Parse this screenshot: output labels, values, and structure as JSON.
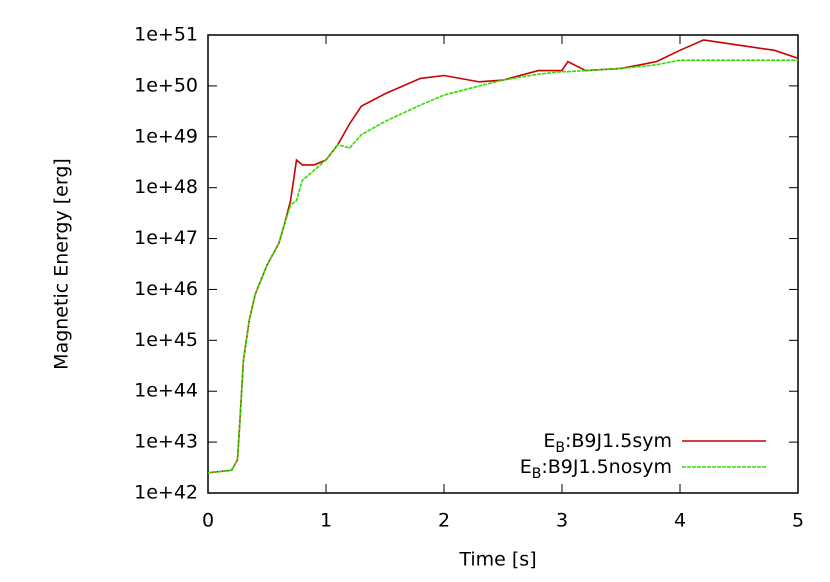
{
  "chart_data": {
    "type": "line",
    "xlabel": "Time [s]",
    "ylabel": "Magnetic Energy [erg]",
    "x": [
      0,
      0.2,
      0.25,
      0.27,
      0.3,
      0.35,
      0.4,
      0.5,
      0.6,
      0.65,
      0.7,
      0.75,
      0.8,
      0.9,
      1.0,
      1.1,
      1.2,
      1.3,
      1.5,
      1.8,
      2.0,
      2.3,
      2.5,
      2.8,
      3.0,
      3.05,
      3.2,
      3.5,
      3.8,
      4.0,
      4.2,
      4.5,
      4.8,
      5.0
    ],
    "series": [
      {
        "name": "EB:B9J1.5sym",
        "color": "#cc0000",
        "values": [
          2.5e+42,
          2.8e+42,
          4.5e+42,
          2.5e+43,
          4e+44,
          2.5e+45,
          8e+45,
          3e+46,
          8e+46,
          2e+47,
          5.6e+47,
          3.5e+48,
          2.8e+48,
          2.8e+48,
          3.5e+48,
          7e+48,
          1.8e+49,
          4e+49,
          7e+49,
          1.4e+50,
          1.6e+50,
          1.2e+50,
          1.3e+50,
          2e+50,
          2e+50,
          3e+50,
          2e+50,
          2.2e+50,
          3e+50,
          5e+50,
          8e+50,
          6.3e+50,
          5e+50,
          3.5e+50
        ]
      },
      {
        "name": "EB:B9J1.5nosym",
        "color": "#33dd00",
        "values": [
          2.5e+42,
          2.8e+42,
          4.5e+42,
          2.5e+43,
          4e+44,
          2.5e+45,
          8e+45,
          3e+46,
          8e+46,
          2e+47,
          4.5e+47,
          5.6e+47,
          1.4e+48,
          2.2e+48,
          3.5e+48,
          7e+48,
          6e+48,
          1.1e+49,
          2e+49,
          4.2e+49,
          6.6e+49,
          1e+50,
          1.3e+50,
          1.7e+50,
          1.9e+50,
          1.9e+50,
          2e+50,
          2.2e+50,
          2.6e+50,
          3.2e+50,
          3.2e+50,
          3.2e+50,
          3.2e+50,
          3.2e+50
        ]
      }
    ],
    "xlim": [
      0,
      5
    ],
    "xticks": [
      0,
      1,
      2,
      3,
      4,
      5
    ],
    "ylim": [
      1e+42,
      1e+51
    ],
    "log_y": true,
    "yticks": [
      {
        "value": 1e+42,
        "label": "1e+42"
      },
      {
        "value": 1e+43,
        "label": "1e+43"
      },
      {
        "value": 1e+44,
        "label": "1e+44"
      },
      {
        "value": 1e+45,
        "label": "1e+45"
      },
      {
        "value": 1e+46,
        "label": "1e+46"
      },
      {
        "value": 1e+47,
        "label": "1e+47"
      },
      {
        "value": 1e+48,
        "label": "1e+48"
      },
      {
        "value": 1e+49,
        "label": "1e+49"
      },
      {
        "value": 1e+50,
        "label": "1e+50"
      },
      {
        "value": 1e+51,
        "label": "1e+51"
      }
    ],
    "grid": false,
    "legend": "lower right"
  }
}
